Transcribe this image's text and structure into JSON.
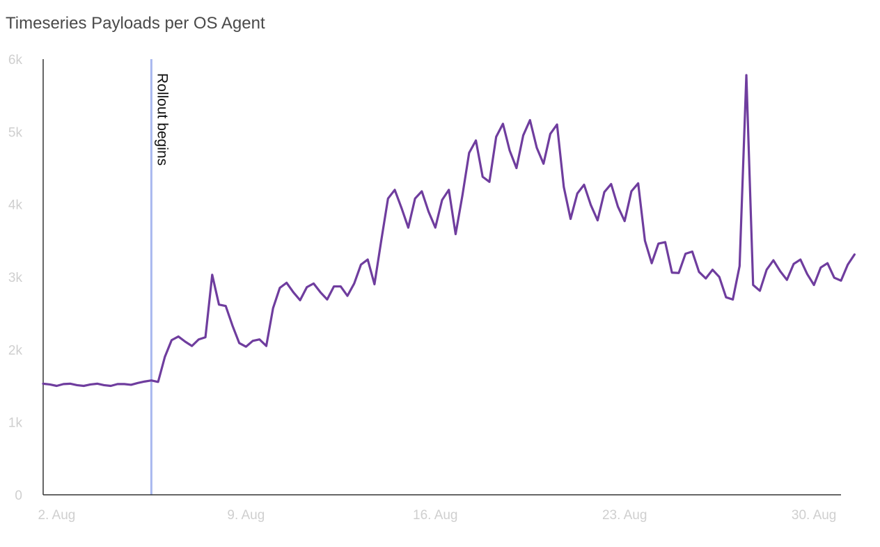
{
  "chart_data": {
    "type": "line",
    "title": "Timeseries Payloads per OS Agent",
    "xlabel": "",
    "ylabel": "",
    "ylim": [
      0,
      6000
    ],
    "xlim": [
      "2023-08-01T12:00",
      "2023-08-31T00:00"
    ],
    "y_ticks": [
      {
        "value": 0,
        "label": "0"
      },
      {
        "value": 1000,
        "label": "1k"
      },
      {
        "value": 2000,
        "label": "2k"
      },
      {
        "value": 3000,
        "label": "3k"
      },
      {
        "value": 4000,
        "label": "4k"
      },
      {
        "value": 5000,
        "label": "5k"
      },
      {
        "value": 6000,
        "label": "6k"
      }
    ],
    "x_ticks": [
      {
        "value": "2023-08-02T00:00",
        "label": "2. Aug"
      },
      {
        "value": "2023-08-09T00:00",
        "label": "9. Aug"
      },
      {
        "value": "2023-08-16T00:00",
        "label": "16. Aug"
      },
      {
        "value": "2023-08-23T00:00",
        "label": "23. Aug"
      },
      {
        "value": "2023-08-30T00:00",
        "label": "30. Aug"
      }
    ],
    "grid": false,
    "legend": "none",
    "series": [
      {
        "color": "#6f3d9e",
        "points": [
          [
            "2023-08-01T12:00",
            1530
          ],
          [
            "2023-08-01T18:00",
            1520
          ],
          [
            "2023-08-02T00:00",
            1500
          ],
          [
            "2023-08-02T06:00",
            1525
          ],
          [
            "2023-08-02T12:00",
            1530
          ],
          [
            "2023-08-02T18:00",
            1510
          ],
          [
            "2023-08-03T00:00",
            1500
          ],
          [
            "2023-08-03T06:00",
            1520
          ],
          [
            "2023-08-03T12:00",
            1530
          ],
          [
            "2023-08-03T18:00",
            1510
          ],
          [
            "2023-08-04T00:00",
            1500
          ],
          [
            "2023-08-04T06:00",
            1525
          ],
          [
            "2023-08-04T12:00",
            1525
          ],
          [
            "2023-08-04T18:00",
            1515
          ],
          [
            "2023-08-05T00:00",
            1540
          ],
          [
            "2023-08-05T06:00",
            1560
          ],
          [
            "2023-08-05T12:00",
            1575
          ],
          [
            "2023-08-05T18:00",
            1555
          ],
          [
            "2023-08-06T00:00",
            1900
          ],
          [
            "2023-08-06T06:00",
            2130
          ],
          [
            "2023-08-06T12:00",
            2180
          ],
          [
            "2023-08-06T18:00",
            2110
          ],
          [
            "2023-08-07T00:00",
            2050
          ],
          [
            "2023-08-07T06:00",
            2140
          ],
          [
            "2023-08-07T12:00",
            2170
          ],
          [
            "2023-08-07T18:00",
            3030
          ],
          [
            "2023-08-08T00:00",
            2620
          ],
          [
            "2023-08-08T06:00",
            2600
          ],
          [
            "2023-08-08T12:00",
            2330
          ],
          [
            "2023-08-08T18:00",
            2090
          ],
          [
            "2023-08-09T00:00",
            2040
          ],
          [
            "2023-08-09T06:00",
            2120
          ],
          [
            "2023-08-09T12:00",
            2140
          ],
          [
            "2023-08-09T18:00",
            2050
          ],
          [
            "2023-08-10T00:00",
            2570
          ],
          [
            "2023-08-10T06:00",
            2850
          ],
          [
            "2023-08-10T12:00",
            2920
          ],
          [
            "2023-08-10T18:00",
            2790
          ],
          [
            "2023-08-11T00:00",
            2680
          ],
          [
            "2023-08-11T06:00",
            2860
          ],
          [
            "2023-08-11T12:00",
            2910
          ],
          [
            "2023-08-11T18:00",
            2790
          ],
          [
            "2023-08-12T00:00",
            2690
          ],
          [
            "2023-08-12T06:00",
            2870
          ],
          [
            "2023-08-12T12:00",
            2870
          ],
          [
            "2023-08-12T18:00",
            2740
          ],
          [
            "2023-08-13T00:00",
            2910
          ],
          [
            "2023-08-13T06:00",
            3170
          ],
          [
            "2023-08-13T12:00",
            3240
          ],
          [
            "2023-08-13T18:00",
            2900
          ],
          [
            "2023-08-14T00:00",
            3500
          ],
          [
            "2023-08-14T06:00",
            4080
          ],
          [
            "2023-08-14T12:00",
            4200
          ],
          [
            "2023-08-14T18:00",
            3950
          ],
          [
            "2023-08-15T00:00",
            3680
          ],
          [
            "2023-08-15T06:00",
            4080
          ],
          [
            "2023-08-15T12:00",
            4180
          ],
          [
            "2023-08-15T18:00",
            3900
          ],
          [
            "2023-08-16T00:00",
            3680
          ],
          [
            "2023-08-16T06:00",
            4060
          ],
          [
            "2023-08-16T12:00",
            4200
          ],
          [
            "2023-08-16T18:00",
            3590
          ],
          [
            "2023-08-17T00:00",
            4120
          ],
          [
            "2023-08-17T06:00",
            4710
          ],
          [
            "2023-08-17T12:00",
            4880
          ],
          [
            "2023-08-17T18:00",
            4380
          ],
          [
            "2023-08-18T00:00",
            4310
          ],
          [
            "2023-08-18T06:00",
            4930
          ],
          [
            "2023-08-18T12:00",
            5110
          ],
          [
            "2023-08-18T18:00",
            4740
          ],
          [
            "2023-08-19T00:00",
            4500
          ],
          [
            "2023-08-19T06:00",
            4950
          ],
          [
            "2023-08-19T12:00",
            5160
          ],
          [
            "2023-08-19T18:00",
            4780
          ],
          [
            "2023-08-20T00:00",
            4560
          ],
          [
            "2023-08-20T06:00",
            4970
          ],
          [
            "2023-08-20T12:00",
            5100
          ],
          [
            "2023-08-20T18:00",
            4240
          ],
          [
            "2023-08-21T00:00",
            3800
          ],
          [
            "2023-08-21T06:00",
            4150
          ],
          [
            "2023-08-21T12:00",
            4270
          ],
          [
            "2023-08-21T18:00",
            3990
          ],
          [
            "2023-08-22T00:00",
            3780
          ],
          [
            "2023-08-22T06:00",
            4170
          ],
          [
            "2023-08-22T12:00",
            4280
          ],
          [
            "2023-08-22T18:00",
            3970
          ],
          [
            "2023-08-23T00:00",
            3770
          ],
          [
            "2023-08-23T06:00",
            4180
          ],
          [
            "2023-08-23T12:00",
            4290
          ],
          [
            "2023-08-23T18:00",
            3500
          ],
          [
            "2023-08-24T00:00",
            3190
          ],
          [
            "2023-08-24T06:00",
            3460
          ],
          [
            "2023-08-24T12:00",
            3480
          ],
          [
            "2023-08-24T18:00",
            3060
          ],
          [
            "2023-08-25T00:00",
            3055
          ],
          [
            "2023-08-25T06:00",
            3320
          ],
          [
            "2023-08-25T12:00",
            3350
          ],
          [
            "2023-08-25T18:00",
            3070
          ],
          [
            "2023-08-26T00:00",
            2980
          ],
          [
            "2023-08-26T06:00",
            3100
          ],
          [
            "2023-08-26T12:00",
            3000
          ],
          [
            "2023-08-26T18:00",
            2720
          ],
          [
            "2023-08-27T00:00",
            2690
          ],
          [
            "2023-08-27T06:00",
            3150
          ],
          [
            "2023-08-27T12:00",
            5780
          ],
          [
            "2023-08-27T18:00",
            2890
          ],
          [
            "2023-08-28T00:00",
            2810
          ],
          [
            "2023-08-28T06:00",
            3100
          ],
          [
            "2023-08-28T12:00",
            3230
          ],
          [
            "2023-08-28T18:00",
            3080
          ],
          [
            "2023-08-29T00:00",
            2960
          ],
          [
            "2023-08-29T06:00",
            3180
          ],
          [
            "2023-08-29T12:00",
            3240
          ],
          [
            "2023-08-29T18:00",
            3040
          ],
          [
            "2023-08-30T00:00",
            2890
          ],
          [
            "2023-08-30T06:00",
            3130
          ],
          [
            "2023-08-30T12:00",
            3190
          ],
          [
            "2023-08-30T18:00",
            2990
          ],
          [
            "2023-08-31T00:00",
            2950
          ],
          [
            "2023-08-31T06:00",
            3170
          ],
          [
            "2023-08-31T12:00",
            3310
          ]
        ]
      }
    ],
    "annotations": [
      {
        "type": "vertical-line",
        "x": "2023-08-05T12:00",
        "label": "Rollout begins",
        "color": "#a9b8ef"
      }
    ]
  }
}
